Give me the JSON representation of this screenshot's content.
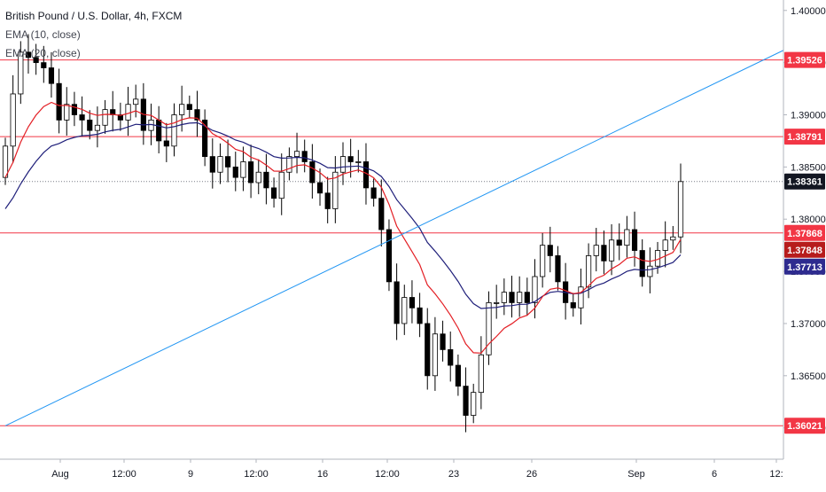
{
  "legend": {
    "symbol": "British Pound / U.S. Dollar, 4h, FXCM",
    "ema1": "EMA (10, close)",
    "ema2": "EMA (20, close)"
  },
  "colors": {
    "up": "#ffffff",
    "down": "#000000",
    "wick": "#000000",
    "level_line": "#f23645",
    "trendline": "#2196f3",
    "ema_fast": "#e31e24",
    "ema_slow": "#1f1f7a",
    "price_tag": "#131722",
    "ema_fast_tag": "#b71c1c",
    "ema_slow_tag": "#2e2b8f"
  },
  "chart_data": {
    "type": "line",
    "title": "British Pound / U.S. Dollar, 4h, FXCM",
    "xlabel": "",
    "ylabel": "",
    "ylim": [
      1.357,
      1.401
    ],
    "x_tick_labels": [
      "Aug",
      "12:00",
      "9",
      "12:00",
      "16",
      "12:00",
      "23",
      "26",
      "Sep",
      "6",
      "12:"
    ],
    "y_tick_labels": [
      "1.40000",
      "1.39500",
      "1.39000",
      "1.38500",
      "1.38000",
      "1.37500",
      "1.37000",
      "1.36500",
      "1.36000"
    ],
    "horizontal_levels": [
      {
        "label": "1.39526",
        "value": 1.39526
      },
      {
        "label": "1.38791",
        "value": 1.38791
      },
      {
        "label": "1.37868",
        "value": 1.37868
      },
      {
        "label": "1.36021",
        "value": 1.36021
      }
    ],
    "current_price": {
      "label": "1.38361",
      "value": 1.38361
    },
    "ema_values": [
      {
        "name": "EMA (10, close)",
        "label": "1.37848",
        "value": 1.37848
      },
      {
        "name": "EMA (20, close)",
        "label": "1.37713",
        "value": 1.37713
      }
    ],
    "trendline": {
      "start": [
        0,
        1.3602
      ],
      "end": [
        62,
        1.3822
      ]
    },
    "close": [
      1.387,
      1.392,
      1.396,
      1.3955,
      1.395,
      1.3945,
      1.393,
      1.3895,
      1.391,
      1.39,
      1.3895,
      1.3885,
      1.389,
      1.3905,
      1.39,
      1.3895,
      1.391,
      1.3915,
      1.3885,
      1.3895,
      1.3875,
      1.387,
      1.39,
      1.391,
      1.3905,
      1.3895,
      1.386,
      1.3845,
      1.386,
      1.385,
      1.384,
      1.3855,
      1.3835,
      1.3845,
      1.383,
      1.382,
      1.3845,
      1.386,
      1.3865,
      1.3855,
      1.3835,
      1.3825,
      1.381,
      1.3845,
      1.386,
      1.3855,
      1.3855,
      1.383,
      1.382,
      1.379,
      1.374,
      1.37,
      1.3725,
      1.3715,
      1.37,
      1.365,
      1.369,
      1.3675,
      1.366,
      1.364,
      1.3612,
      1.3634,
      1.367,
      1.372,
      1.372,
      1.373,
      1.372,
      1.373,
      1.372,
      1.3745,
      1.3775,
      1.3765,
      1.374,
      1.372,
      1.3715,
      1.3735,
      1.3765,
      1.3775,
      1.376,
      1.378,
      1.3775,
      1.379,
      1.377,
      1.3745,
      1.3755,
      1.377,
      1.378,
      1.3783,
      1.3836
    ]
  }
}
